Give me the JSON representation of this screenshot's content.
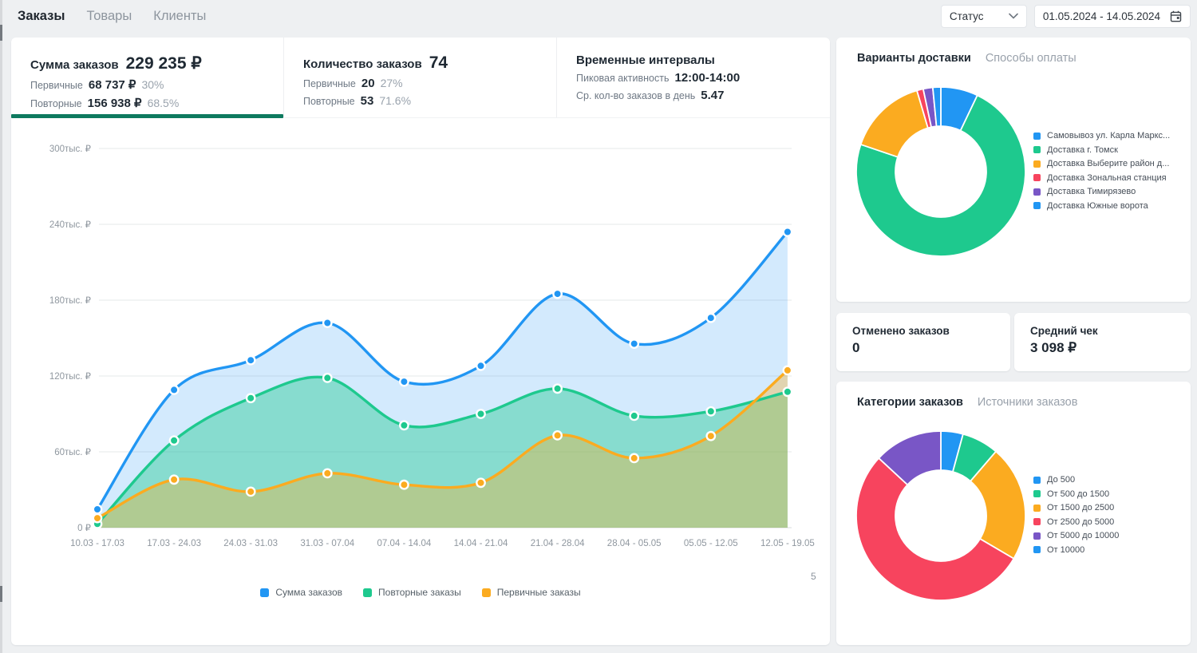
{
  "topbar": {
    "tabs": [
      {
        "label": "Заказы",
        "active": true
      },
      {
        "label": "Товары",
        "active": false
      },
      {
        "label": "Клиенты",
        "active": false
      }
    ],
    "status_label": "Статус",
    "date_range": "01.05.2024 - 14.05.2024"
  },
  "stats": [
    {
      "title": "Сумма заказов",
      "value": "229 235 ₽",
      "active": true,
      "rows": [
        {
          "label": "Первичные",
          "value": "68 737 ₽",
          "pct": "30%"
        },
        {
          "label": "Повторные",
          "value": "156 938 ₽",
          "pct": "68.5%"
        }
      ]
    },
    {
      "title": "Количество заказов",
      "value": "74",
      "active": false,
      "rows": [
        {
          "label": "Первичные",
          "value": "20",
          "pct": "27%"
        },
        {
          "label": "Повторные",
          "value": "53",
          "pct": "71.6%"
        }
      ]
    },
    {
      "title": "Временные интервалы",
      "value": "",
      "active": false,
      "rows": [
        {
          "label": "Пиковая активность",
          "value": "12:00-14:00",
          "pct": ""
        },
        {
          "label": "Ср. кол-во заказов в день",
          "value": "5.47",
          "pct": ""
        }
      ]
    }
  ],
  "cancelled_card": {
    "title": "Отменено заказов",
    "value": "0"
  },
  "avg_check_card": {
    "title": "Средний чек",
    "value": "3 098 ₽"
  },
  "page_indicator": "5",
  "colors": {
    "accent_green": "#0e7a5f",
    "blue": "#2196f3",
    "green": "#1ec98e",
    "orange": "#fbab20",
    "red": "#f7445e",
    "purple": "#7956c6",
    "grid": "#e6e8ea",
    "axis_text": "#8f979f"
  },
  "chart_data": [
    {
      "id": "orders_weekly",
      "type": "area",
      "title": "",
      "categories": [
        "10.03 - 17.03",
        "17.03 - 24.03",
        "24.03 - 31.03",
        "31.03 - 07.04",
        "07.04 - 14.04",
        "14.04 - 21.04",
        "21.04 - 28.04",
        "28.04 - 05.05",
        "05.05 - 12.05",
        "12.05 - 19.05"
      ],
      "series": [
        {
          "name": "Сумма заказов",
          "color": "#2196f3",
          "fill": "rgba(33,150,243,0.20)",
          "values": [
            14500,
            109000,
            132500,
            162000,
            115500,
            128000,
            185000,
            145500,
            166000,
            234000
          ]
        },
        {
          "name": "Повторные заказы",
          "color": "#1ec98e",
          "fill": "rgba(30,201,142,0.42)",
          "values": [
            3000,
            69000,
            102500,
            118500,
            81000,
            90000,
            110000,
            88500,
            92000,
            107500
          ]
        },
        {
          "name": "Первичные заказы",
          "color": "#fbab20",
          "fill": "rgba(251,171,32,0.35)",
          "values": [
            7500,
            38000,
            28500,
            43000,
            34000,
            35500,
            73000,
            55000,
            72500,
            124500
          ]
        }
      ],
      "ylim": [
        0,
        300000
      ],
      "yticks": [
        "0 ₽",
        "60тыс. ₽",
        "120тыс. ₽",
        "180тыс. ₽",
        "240тыс. ₽",
        "300тыс. ₽"
      ],
      "grid": true,
      "legend_position": "bottom"
    },
    {
      "id": "delivery_options",
      "type": "donut",
      "title_tabs": [
        "Варианты доставки",
        "Способы оплаты"
      ],
      "active_tab": 0,
      "labels": [
        "Самовывоз ул. Карла Маркс...",
        "Доставка г. Томск",
        "Доставка Выберите район д...",
        "Доставка Зональная станция",
        "Доставка Тимирязево",
        "Доставка Южные ворота"
      ],
      "values": [
        7,
        72,
        15,
        1.2,
        1.8,
        1.5
      ],
      "colors": [
        "#2196f3",
        "#1ec98e",
        "#fbab20",
        "#f7445e",
        "#7956c6",
        "#2196f3"
      ],
      "legend_position": "right"
    },
    {
      "id": "order_categories",
      "type": "donut",
      "title_tabs": [
        "Категории заказов",
        "Источники заказов"
      ],
      "active_tab": 0,
      "labels": [
        "До 500",
        "От 500 до 1500",
        "От 1500 до 2500",
        "От 2500 до 5000",
        "От 5000 до 10000",
        "От 10000"
      ],
      "values": [
        4.2,
        7,
        22,
        53,
        13,
        0
      ],
      "colors": [
        "#2196f3",
        "#1ec98e",
        "#fbab20",
        "#f7445e",
        "#7956c6",
        "#2196f3"
      ],
      "legend_position": "right"
    }
  ]
}
